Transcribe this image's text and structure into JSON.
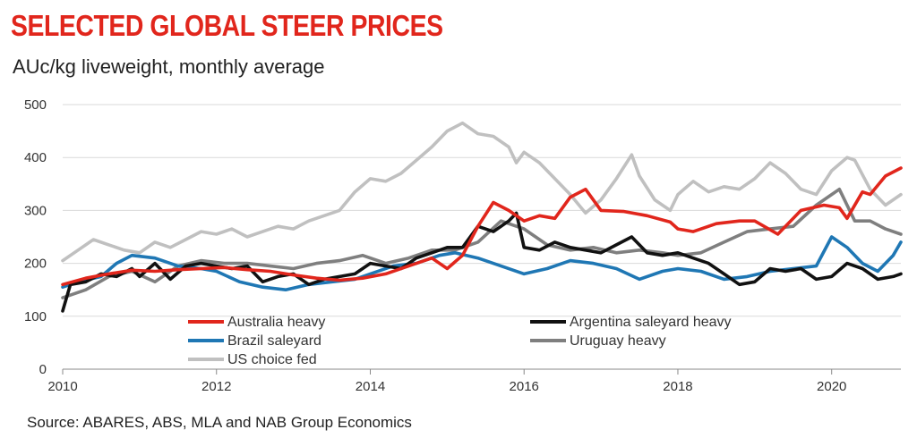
{
  "header": {
    "title": "SELECTED GLOBAL STEER PRICES",
    "subtitle": "AUc/kg liveweight, monthly average"
  },
  "footer": {
    "source": "Source: ABARES, ABS, MLA and NAB Group Economics"
  },
  "chart_data": {
    "type": "line",
    "title": "SELECTED GLOBAL STEER PRICES",
    "subtitle": "AUc/kg liveweight, monthly average",
    "xlabel": "",
    "ylabel": "",
    "xlim": [
      2010,
      2020.9
    ],
    "ylim": [
      0,
      500
    ],
    "x_ticks": [
      "2010",
      "2012",
      "2014",
      "2016",
      "2018",
      "2020"
    ],
    "y_ticks": [
      "0",
      "100",
      "200",
      "300",
      "400",
      "500"
    ],
    "grid": "horizontal",
    "legend_position": "bottom-inside",
    "series": [
      {
        "name": "Australia heavy",
        "color": "#e1261c",
        "points": [
          [
            2010,
            160
          ],
          [
            2010.3,
            172
          ],
          [
            2010.6,
            180
          ],
          [
            2010.9,
            187
          ],
          [
            2011.2,
            185
          ],
          [
            2011.5,
            188
          ],
          [
            2011.8,
            190
          ],
          [
            2012.1,
            192
          ],
          [
            2012.4,
            188
          ],
          [
            2012.7,
            185
          ],
          [
            2013.0,
            178
          ],
          [
            2013.3,
            172
          ],
          [
            2013.6,
            168
          ],
          [
            2013.9,
            172
          ],
          [
            2014.2,
            180
          ],
          [
            2014.5,
            195
          ],
          [
            2014.8,
            210
          ],
          [
            2015.0,
            190
          ],
          [
            2015.2,
            215
          ],
          [
            2015.4,
            270
          ],
          [
            2015.6,
            315
          ],
          [
            2015.8,
            300
          ],
          [
            2016.0,
            280
          ],
          [
            2016.2,
            290
          ],
          [
            2016.4,
            285
          ],
          [
            2016.6,
            325
          ],
          [
            2016.8,
            340
          ],
          [
            2017.0,
            300
          ],
          [
            2017.3,
            298
          ],
          [
            2017.6,
            290
          ],
          [
            2017.9,
            278
          ],
          [
            2018.0,
            265
          ],
          [
            2018.2,
            260
          ],
          [
            2018.5,
            275
          ],
          [
            2018.8,
            280
          ],
          [
            2019.0,
            280
          ],
          [
            2019.3,
            255
          ],
          [
            2019.6,
            300
          ],
          [
            2019.9,
            310
          ],
          [
            2020.1,
            305
          ],
          [
            2020.2,
            285
          ],
          [
            2020.4,
            335
          ],
          [
            2020.5,
            330
          ],
          [
            2020.7,
            365
          ],
          [
            2020.9,
            380
          ]
        ]
      },
      {
        "name": "Argentina saleyard heavy",
        "color": "#111111",
        "points": [
          [
            2010,
            110
          ],
          [
            2010.1,
            160
          ],
          [
            2010.3,
            165
          ],
          [
            2010.5,
            180
          ],
          [
            2010.7,
            175
          ],
          [
            2010.9,
            190
          ],
          [
            2011.0,
            175
          ],
          [
            2011.2,
            200
          ],
          [
            2011.4,
            170
          ],
          [
            2011.6,
            195
          ],
          [
            2011.8,
            200
          ],
          [
            2012.0,
            195
          ],
          [
            2012.2,
            190
          ],
          [
            2012.4,
            195
          ],
          [
            2012.6,
            165
          ],
          [
            2012.8,
            175
          ],
          [
            2013.0,
            180
          ],
          [
            2013.2,
            160
          ],
          [
            2013.4,
            170
          ],
          [
            2013.6,
            175
          ],
          [
            2013.8,
            180
          ],
          [
            2014.0,
            200
          ],
          [
            2014.2,
            195
          ],
          [
            2014.4,
            190
          ],
          [
            2014.6,
            210
          ],
          [
            2014.8,
            220
          ],
          [
            2015.0,
            230
          ],
          [
            2015.2,
            230
          ],
          [
            2015.4,
            270
          ],
          [
            2015.6,
            260
          ],
          [
            2015.8,
            280
          ],
          [
            2015.9,
            295
          ],
          [
            2016.0,
            230
          ],
          [
            2016.2,
            225
          ],
          [
            2016.4,
            240
          ],
          [
            2016.6,
            230
          ],
          [
            2016.8,
            225
          ],
          [
            2017.0,
            220
          ],
          [
            2017.2,
            235
          ],
          [
            2017.4,
            250
          ],
          [
            2017.6,
            220
          ],
          [
            2017.8,
            215
          ],
          [
            2018.0,
            220
          ],
          [
            2018.2,
            210
          ],
          [
            2018.4,
            200
          ],
          [
            2018.6,
            180
          ],
          [
            2018.8,
            160
          ],
          [
            2019.0,
            165
          ],
          [
            2019.2,
            190
          ],
          [
            2019.4,
            185
          ],
          [
            2019.6,
            190
          ],
          [
            2019.8,
            170
          ],
          [
            2020.0,
            175
          ],
          [
            2020.2,
            200
          ],
          [
            2020.4,
            190
          ],
          [
            2020.6,
            170
          ],
          [
            2020.8,
            175
          ],
          [
            2020.9,
            180
          ]
        ]
      },
      {
        "name": "Brazil saleyard",
        "color": "#1f77b4",
        "points": [
          [
            2010,
            155
          ],
          [
            2010.2,
            165
          ],
          [
            2010.5,
            175
          ],
          [
            2010.7,
            200
          ],
          [
            2010.9,
            215
          ],
          [
            2011.2,
            210
          ],
          [
            2011.5,
            195
          ],
          [
            2011.8,
            190
          ],
          [
            2012.0,
            185
          ],
          [
            2012.3,
            165
          ],
          [
            2012.6,
            155
          ],
          [
            2012.9,
            150
          ],
          [
            2013.2,
            160
          ],
          [
            2013.5,
            165
          ],
          [
            2013.8,
            170
          ],
          [
            2014.0,
            180
          ],
          [
            2014.3,
            195
          ],
          [
            2014.6,
            200
          ],
          [
            2014.9,
            215
          ],
          [
            2015.1,
            220
          ],
          [
            2015.4,
            210
          ],
          [
            2015.7,
            195
          ],
          [
            2016.0,
            180
          ],
          [
            2016.3,
            190
          ],
          [
            2016.6,
            205
          ],
          [
            2016.9,
            200
          ],
          [
            2017.2,
            190
          ],
          [
            2017.5,
            170
          ],
          [
            2017.8,
            185
          ],
          [
            2018.0,
            190
          ],
          [
            2018.3,
            185
          ],
          [
            2018.6,
            170
          ],
          [
            2018.9,
            175
          ],
          [
            2019.2,
            185
          ],
          [
            2019.5,
            190
          ],
          [
            2019.8,
            195
          ],
          [
            2020.0,
            250
          ],
          [
            2020.2,
            230
          ],
          [
            2020.4,
            200
          ],
          [
            2020.6,
            185
          ],
          [
            2020.8,
            215
          ],
          [
            2020.9,
            240
          ]
        ]
      },
      {
        "name": "Uruguay heavy",
        "color": "#7f7f7f",
        "points": [
          [
            2010,
            135
          ],
          [
            2010.3,
            150
          ],
          [
            2010.6,
            175
          ],
          [
            2010.9,
            185
          ],
          [
            2011.2,
            165
          ],
          [
            2011.5,
            195
          ],
          [
            2011.8,
            205
          ],
          [
            2012.1,
            200
          ],
          [
            2012.4,
            200
          ],
          [
            2012.7,
            195
          ],
          [
            2013.0,
            190
          ],
          [
            2013.3,
            200
          ],
          [
            2013.6,
            205
          ],
          [
            2013.9,
            215
          ],
          [
            2014.2,
            200
          ],
          [
            2014.5,
            210
          ],
          [
            2014.8,
            225
          ],
          [
            2015.1,
            225
          ],
          [
            2015.4,
            240
          ],
          [
            2015.7,
            280
          ],
          [
            2016.0,
            265
          ],
          [
            2016.3,
            235
          ],
          [
            2016.6,
            225
          ],
          [
            2016.9,
            230
          ],
          [
            2017.2,
            220
          ],
          [
            2017.5,
            225
          ],
          [
            2017.8,
            220
          ],
          [
            2018.0,
            215
          ],
          [
            2018.3,
            220
          ],
          [
            2018.6,
            240
          ],
          [
            2018.9,
            260
          ],
          [
            2019.2,
            265
          ],
          [
            2019.5,
            270
          ],
          [
            2019.8,
            310
          ],
          [
            2020.0,
            330
          ],
          [
            2020.1,
            340
          ],
          [
            2020.3,
            280
          ],
          [
            2020.5,
            280
          ],
          [
            2020.7,
            265
          ],
          [
            2020.9,
            255
          ]
        ]
      },
      {
        "name": "US choice fed",
        "color": "#c0c0c0",
        "points": [
          [
            2010,
            205
          ],
          [
            2010.2,
            225
          ],
          [
            2010.4,
            245
          ],
          [
            2010.6,
            235
          ],
          [
            2010.8,
            225
          ],
          [
            2011.0,
            220
          ],
          [
            2011.2,
            240
          ],
          [
            2011.4,
            230
          ],
          [
            2011.6,
            245
          ],
          [
            2011.8,
            260
          ],
          [
            2012.0,
            255
          ],
          [
            2012.2,
            265
          ],
          [
            2012.4,
            250
          ],
          [
            2012.6,
            260
          ],
          [
            2012.8,
            270
          ],
          [
            2013.0,
            265
          ],
          [
            2013.2,
            280
          ],
          [
            2013.4,
            290
          ],
          [
            2013.6,
            300
          ],
          [
            2013.8,
            335
          ],
          [
            2014.0,
            360
          ],
          [
            2014.2,
            355
          ],
          [
            2014.4,
            370
          ],
          [
            2014.6,
            395
          ],
          [
            2014.8,
            420
          ],
          [
            2015.0,
            450
          ],
          [
            2015.2,
            465
          ],
          [
            2015.4,
            445
          ],
          [
            2015.6,
            440
          ],
          [
            2015.8,
            420
          ],
          [
            2015.9,
            390
          ],
          [
            2016.0,
            410
          ],
          [
            2016.2,
            390
          ],
          [
            2016.4,
            360
          ],
          [
            2016.6,
            330
          ],
          [
            2016.8,
            295
          ],
          [
            2017.0,
            320
          ],
          [
            2017.2,
            360
          ],
          [
            2017.4,
            405
          ],
          [
            2017.5,
            365
          ],
          [
            2017.7,
            320
          ],
          [
            2017.9,
            300
          ],
          [
            2018.0,
            330
          ],
          [
            2018.2,
            355
          ],
          [
            2018.4,
            335
          ],
          [
            2018.6,
            345
          ],
          [
            2018.8,
            340
          ],
          [
            2019.0,
            360
          ],
          [
            2019.2,
            390
          ],
          [
            2019.4,
            370
          ],
          [
            2019.6,
            340
          ],
          [
            2019.8,
            330
          ],
          [
            2020.0,
            375
          ],
          [
            2020.2,
            400
          ],
          [
            2020.3,
            395
          ],
          [
            2020.5,
            340
          ],
          [
            2020.7,
            310
          ],
          [
            2020.9,
            330
          ]
        ]
      }
    ]
  }
}
